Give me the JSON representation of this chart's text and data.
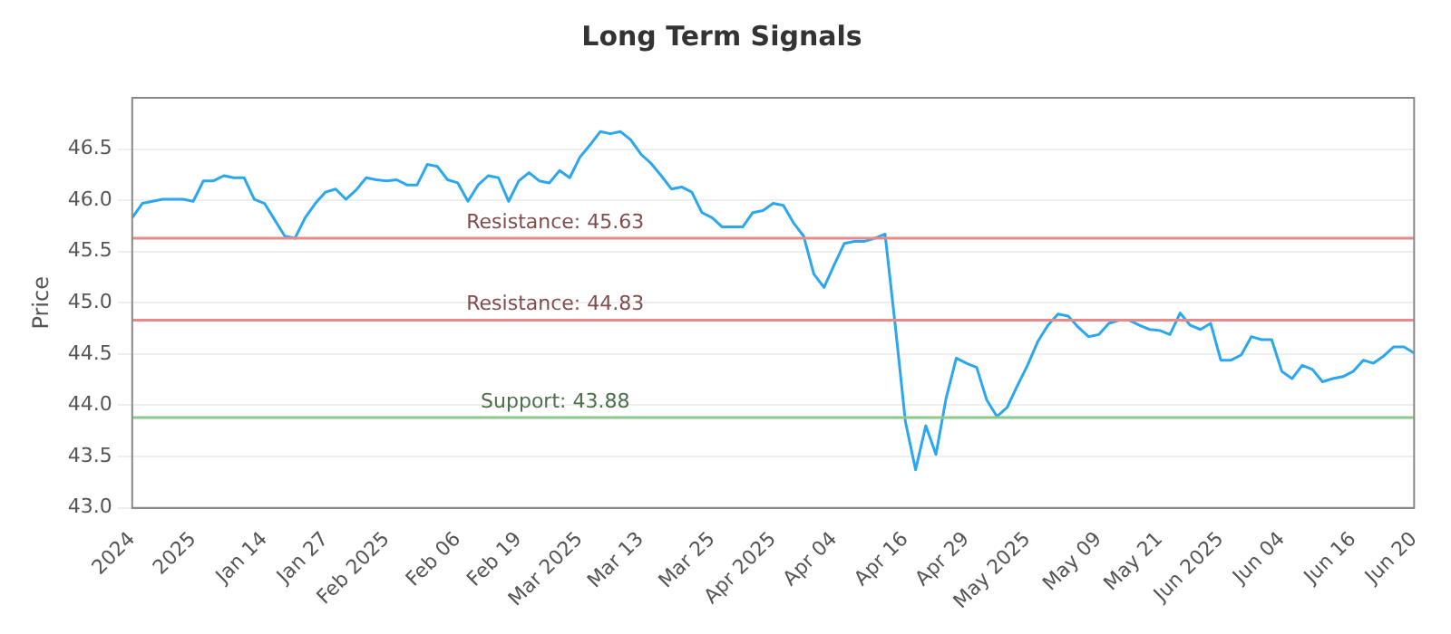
{
  "chart_data": {
    "type": "line",
    "title": "Long Term Signals",
    "ylabel": "Price",
    "categories": [
      "2024",
      null,
      null,
      null,
      null,
      null,
      "2025",
      null,
      null,
      null,
      null,
      null,
      null,
      "Jan 14",
      null,
      null,
      null,
      null,
      null,
      "Jan 27",
      null,
      null,
      null,
      null,
      null,
      "Feb 2025",
      null,
      null,
      null,
      null,
      null,
      null,
      "Feb 06",
      null,
      null,
      null,
      null,
      null,
      "Feb 19",
      null,
      null,
      null,
      null,
      null,
      "Mar 2025",
      null,
      null,
      null,
      null,
      null,
      "Mar 13",
      null,
      null,
      null,
      null,
      null,
      null,
      "Mar 25",
      null,
      null,
      null,
      null,
      null,
      "Apr 2025",
      null,
      null,
      null,
      null,
      null,
      "Apr 04",
      null,
      null,
      null,
      null,
      null,
      null,
      "Apr 16",
      null,
      null,
      null,
      null,
      null,
      "Apr 29",
      null,
      null,
      null,
      null,
      null,
      "May 2025",
      null,
      null,
      null,
      null,
      null,
      null,
      "May 09",
      null,
      null,
      null,
      null,
      null,
      "May 21",
      null,
      null,
      null,
      null,
      null,
      "Jun 2025",
      null,
      null,
      null,
      null,
      null,
      "Jun 04",
      null,
      null,
      null,
      null,
      null,
      null,
      "Jun 16",
      null,
      null,
      null,
      null,
      null,
      "Jun 20"
    ],
    "series": [
      {
        "color": "#2ba7f0",
        "values": [
          45.83,
          45.97,
          45.99,
          46.01,
          46.01,
          46.01,
          45.99,
          46.19,
          46.19,
          46.24,
          46.22,
          46.22,
          46.01,
          45.97,
          45.81,
          45.65,
          45.63,
          45.83,
          45.97,
          46.08,
          46.11,
          46.01,
          46.1,
          46.22,
          46.2,
          46.19,
          46.2,
          46.15,
          46.15,
          46.35,
          46.33,
          46.2,
          46.17,
          45.99,
          46.15,
          46.24,
          46.22,
          45.99,
          46.19,
          46.27,
          46.19,
          46.17,
          46.29,
          46.22,
          46.42,
          46.54,
          46.67,
          46.65,
          46.67,
          46.59,
          46.45,
          46.36,
          46.24,
          46.11,
          46.13,
          46.08,
          45.88,
          45.83,
          45.74,
          45.74,
          45.74,
          45.88,
          45.9,
          45.97,
          45.95,
          45.78,
          45.65,
          45.28,
          45.15,
          45.37,
          45.58,
          45.6,
          45.6,
          45.63,
          45.67,
          44.78,
          43.84,
          43.37,
          43.8,
          43.52,
          44.07,
          44.46,
          44.41,
          44.37,
          44.05,
          43.89,
          43.98,
          44.19,
          44.39,
          44.62,
          44.78,
          44.89,
          44.87,
          44.76,
          44.67,
          44.69,
          44.8,
          44.83,
          44.83,
          44.78,
          44.74,
          44.73,
          44.69,
          44.9,
          44.78,
          44.74,
          44.8,
          44.44,
          44.44,
          44.49,
          44.67,
          44.64,
          44.64,
          44.33,
          44.26,
          44.39,
          44.35,
          44.23,
          44.26,
          44.28,
          44.33,
          44.44,
          44.41,
          44.48,
          44.57,
          44.57,
          44.51
        ]
      }
    ],
    "ylim": [
      43,
      47
    ],
    "yticks": [
      {
        "value": 43,
        "label": "43.0"
      },
      {
        "value": 43.5,
        "label": "43.5"
      },
      {
        "value": 44,
        "label": "44.0"
      },
      {
        "value": 44.5,
        "label": "44.5"
      },
      {
        "value": 45,
        "label": "45.0"
      },
      {
        "value": 45.5,
        "label": "45.5"
      },
      {
        "value": 46,
        "label": "46.0"
      },
      {
        "value": 46.5,
        "label": "46.5"
      }
    ],
    "grid": "y",
    "marker": "none",
    "line_style": "solid",
    "legend": false,
    "ref_lines": [
      {
        "axis": "y",
        "value": 45.63,
        "label": "Resistance: 45.63",
        "color": "#e88a8a"
      },
      {
        "axis": "y",
        "value": 44.83,
        "label": "Resistance: 44.83",
        "color": "#e88a8a"
      },
      {
        "axis": "y",
        "value": 43.88,
        "label": "Support: 43.88",
        "color": "#8cca8c"
      }
    ]
  }
}
